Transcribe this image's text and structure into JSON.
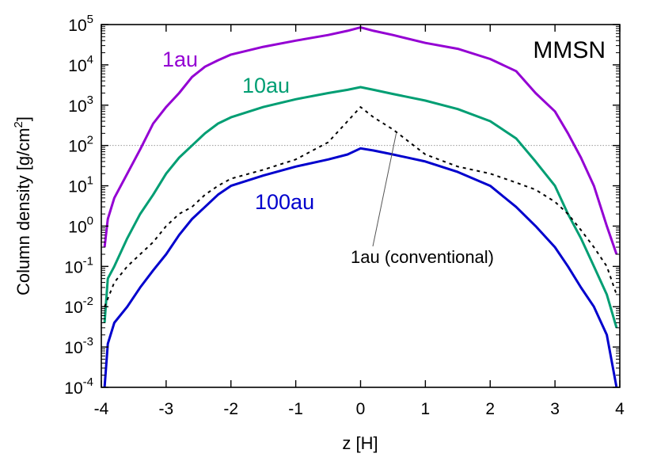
{
  "chart_data": {
    "type": "line",
    "title": "MMSN",
    "xlabel": "z [H]",
    "ylabel_prefix": "Column density [g/cm",
    "ylabel_sup": "2",
    "ylabel_suffix": "]",
    "xlim": [
      -4,
      4
    ],
    "ylim_log10": [
      -4,
      5
    ],
    "yscale": "log",
    "grid": false,
    "x_ticks": [
      "-4",
      "-3",
      "-2",
      "-1",
      "0",
      "1",
      "2",
      "3",
      "4"
    ],
    "y_tick_exponents": [
      "-4",
      "-3",
      "-2",
      "-1",
      "0",
      "1",
      "2",
      "3",
      "4",
      "5"
    ],
    "reference_line": {
      "y": 100,
      "style": "dotted",
      "color": "#999999"
    },
    "annotation": {
      "text": "1au (conventional)",
      "points_to_x": 0.55,
      "points_to_y": 200
    },
    "series": [
      {
        "name": "1au",
        "color": "#9400d3",
        "style": "solid",
        "x": [
          -3.95,
          -3.9,
          -3.8,
          -3.6,
          -3.4,
          -3.2,
          -3.0,
          -2.8,
          -2.6,
          -2.4,
          -2.2,
          -2.0,
          -1.5,
          -1.0,
          -0.5,
          -0.2,
          0.0,
          0.2,
          0.5,
          1.0,
          1.5,
          2.0,
          2.4,
          2.7,
          3.0,
          3.2,
          3.4,
          3.6,
          3.8,
          3.95
        ],
        "values": [
          0.3,
          1.5,
          5,
          20,
          80,
          350,
          900,
          2000,
          5000,
          9000,
          13000,
          18000,
          28000,
          40000,
          55000,
          70000,
          85000,
          70000,
          55000,
          35000,
          25000,
          14000,
          7000,
          2000,
          700,
          200,
          50,
          10,
          1,
          0.2
        ]
      },
      {
        "name": "10au",
        "color": "#009e73",
        "style": "solid",
        "x": [
          -3.95,
          -3.9,
          -3.8,
          -3.6,
          -3.4,
          -3.2,
          -3.0,
          -2.8,
          -2.6,
          -2.4,
          -2.2,
          -2.0,
          -1.5,
          -1.0,
          -0.5,
          -0.2,
          0.0,
          0.2,
          0.5,
          1.0,
          1.5,
          2.0,
          2.4,
          2.7,
          3.0,
          3.2,
          3.4,
          3.6,
          3.8,
          3.95
        ],
        "values": [
          0.004,
          0.05,
          0.1,
          0.5,
          2,
          6,
          20,
          50,
          100,
          200,
          350,
          500,
          900,
          1400,
          2000,
          2400,
          2800,
          2400,
          1900,
          1300,
          800,
          400,
          150,
          40,
          10,
          2,
          0.5,
          0.1,
          0.02,
          0.003
        ]
      },
      {
        "name": "100au",
        "color": "#0000cd",
        "style": "solid",
        "x": [
          -3.95,
          -3.9,
          -3.8,
          -3.6,
          -3.4,
          -3.2,
          -3.0,
          -2.8,
          -2.6,
          -2.4,
          -2.2,
          -2.0,
          -1.5,
          -1.0,
          -0.5,
          -0.2,
          0.0,
          0.2,
          0.5,
          1.0,
          1.5,
          2.0,
          2.4,
          2.7,
          3.0,
          3.2,
          3.4,
          3.6,
          3.8,
          3.95
        ],
        "values": [
          0.0001,
          0.0012,
          0.004,
          0.01,
          0.03,
          0.08,
          0.2,
          0.6,
          1.5,
          3,
          6,
          10,
          18,
          30,
          45,
          60,
          85,
          75,
          60,
          40,
          22,
          10,
          3,
          1,
          0.3,
          0.1,
          0.03,
          0.01,
          0.002,
          0.0001
        ]
      },
      {
        "name": "1au (conventional)",
        "color": "#000000",
        "style": "dashed",
        "x": [
          -3.95,
          -3.8,
          -3.6,
          -3.4,
          -3.2,
          -3.0,
          -2.8,
          -2.6,
          -2.4,
          -2.2,
          -2.0,
          -1.5,
          -1.0,
          -0.5,
          -0.2,
          0.0,
          0.2,
          0.5,
          1.0,
          1.5,
          2.0,
          2.4,
          2.7,
          3.0,
          3.2,
          3.4,
          3.6,
          3.8,
          3.95
        ],
        "values": [
          0.01,
          0.04,
          0.1,
          0.2,
          0.4,
          1,
          2,
          3,
          6,
          10,
          15,
          25,
          45,
          120,
          400,
          900,
          500,
          250,
          60,
          30,
          20,
          12,
          8,
          4,
          2,
          0.8,
          0.3,
          0.1,
          0.02
        ]
      }
    ]
  }
}
